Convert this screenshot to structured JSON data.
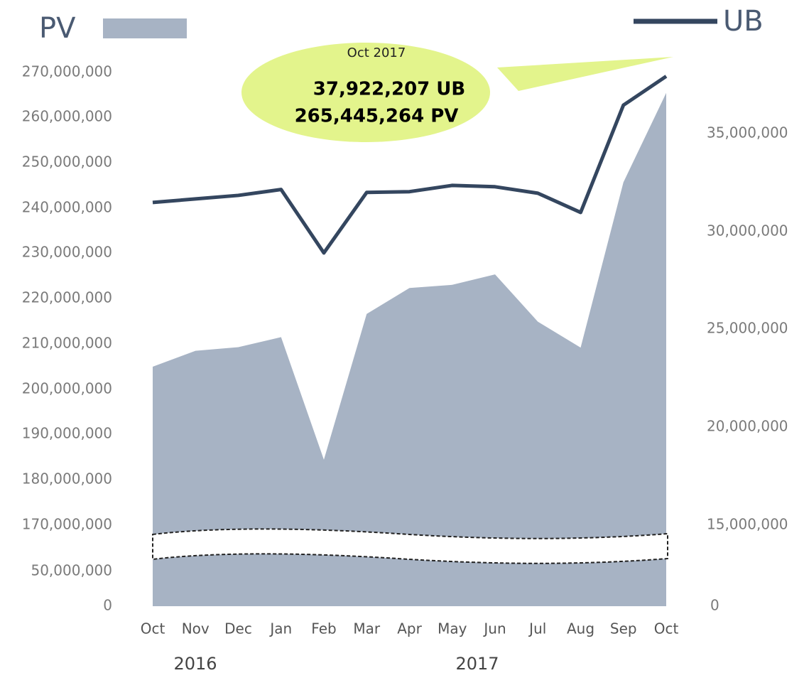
{
  "chart_data": {
    "type": "area-line",
    "categories": [
      "Oct",
      "Nov",
      "Dec",
      "Jan",
      "Feb",
      "Mar",
      "Apr",
      "May",
      "Jun",
      "Jul",
      "Aug",
      "Sep",
      "Oct"
    ],
    "year_labels": [
      "2016",
      "2017"
    ],
    "series": [
      {
        "name": "PV",
        "color": "#a7b3c4",
        "axis": "y",
        "values": [
          205000000,
          208500000,
          209300000,
          211500000,
          184400000,
          216600000,
          222300000,
          223000000,
          225300000,
          214900000,
          209200000,
          245700000,
          265445264
        ]
      },
      {
        "name": "UB",
        "color": "#34465f",
        "axis": "y2",
        "values": [
          31490000,
          31670000,
          31850000,
          32150000,
          28910000,
          32000000,
          32040000,
          32360000,
          32290000,
          31960000,
          30980000,
          36450000,
          37922207
        ]
      }
    ],
    "ylim": [
      0,
      270000000
    ],
    "yticks": [
      0,
      {
        "value": 50000000,
        "label": "50,000,000"
      },
      {
        "value": 170000000,
        "label": "170,000,000"
      },
      {
        "value": 180000000,
        "label": "180,000,000"
      },
      {
        "value": 190000000,
        "label": "190,000,000"
      },
      {
        "value": 200000000,
        "label": "200,000,000"
      },
      {
        "value": 210000000,
        "label": "210,000,000"
      },
      {
        "value": 220000000,
        "label": "220,000,000"
      },
      {
        "value": 230000000,
        "label": "230,000,000"
      },
      {
        "value": 240000000,
        "label": "240,000,000"
      },
      {
        "value": 250000000,
        "label": "250,000,000"
      },
      {
        "value": 260000000,
        "label": "260,000,000"
      },
      {
        "value": 270000000,
        "label": "270,000,000"
      }
    ],
    "y2lim": [
      0,
      38100000
    ],
    "y2ticks": [
      0,
      {
        "value": 15000000,
        "label": "15,000,000"
      },
      {
        "value": 20000000,
        "label": "20,000,000"
      },
      {
        "value": 25000000,
        "label": "25,000,000"
      },
      {
        "value": 30000000,
        "label": "30,000,000"
      },
      {
        "value": 35000000,
        "label": "35,000,000"
      }
    ],
    "annotation": {
      "title": "Oct 2017",
      "lines": [
        "37,922,207 UB",
        "265,445,264 PV"
      ]
    }
  }
}
